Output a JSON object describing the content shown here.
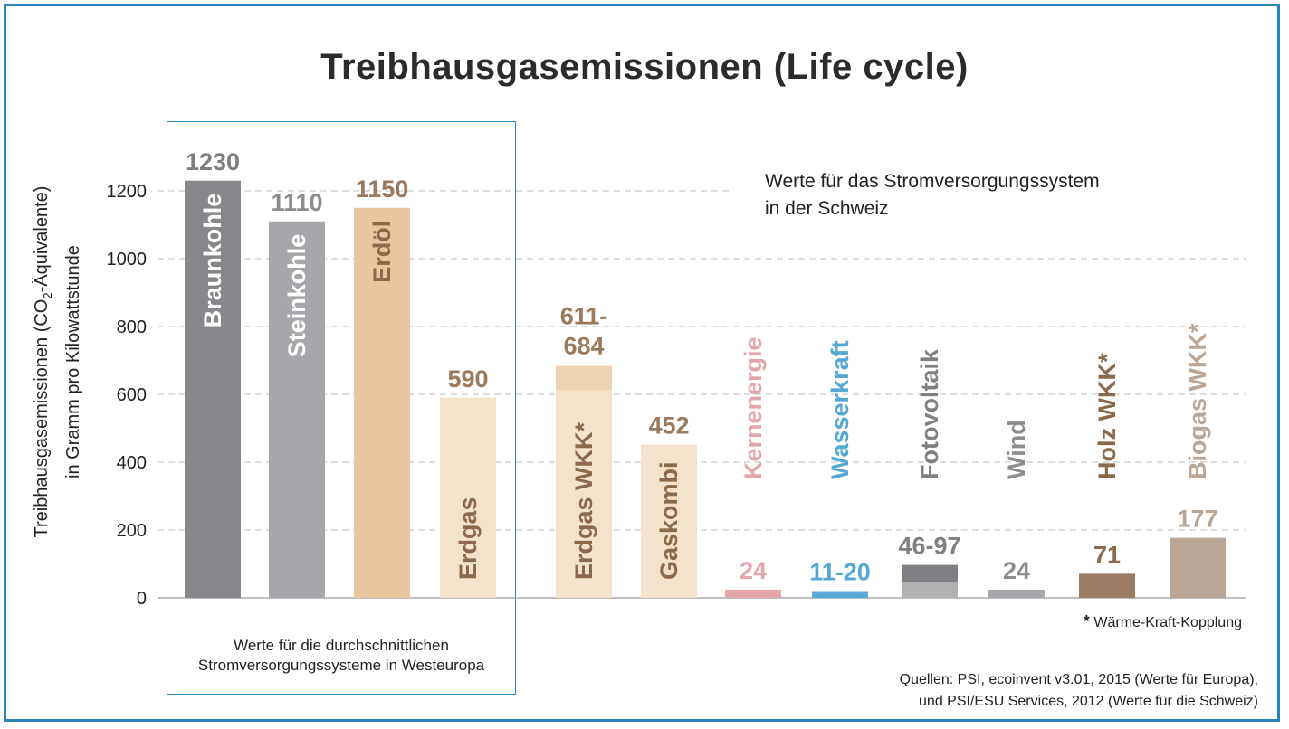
{
  "chart_data": {
    "type": "bar",
    "title": "Treibhausgasemissionen (Life cycle)",
    "ylabel_line1_pre": "Treibhausgasemissionen (CO",
    "ylabel_line1_sub": "2",
    "ylabel_line1_post": "-Äquivalente)",
    "ylabel_line2": "in Gramm pro Kilowattstunde",
    "ylim": [
      0,
      1300
    ],
    "yticks": [
      0,
      200,
      400,
      600,
      800,
      1000,
      1200
    ],
    "grid": true,
    "bars": [
      {
        "category": "Braunkohle",
        "value": 1230,
        "label": "1230",
        "color": "#86878a",
        "name_color": "#ffffff",
        "label_color": "#7d7e81",
        "name_inside": true
      },
      {
        "category": "Steinkohle",
        "value": 1110,
        "label": "1110",
        "color": "#a6a7aa",
        "name_color": "#ffffff",
        "label_color": "#8c8d90",
        "name_inside": true
      },
      {
        "category": "Erdöl",
        "value": 1150,
        "label": "1150",
        "color": "#e6c7a0",
        "name_color": "#8b6a4b",
        "label_color": "#9a7a5c",
        "name_inside": true
      },
      {
        "category": "Erdgas",
        "value": 590,
        "label": "590",
        "color": "#f3e2cc",
        "name_color": "#8b6a4b",
        "label_color": "#9a7a5c",
        "name_inside": true
      },
      {
        "category": "Erdgas WKK*",
        "value": 611,
        "value_max": 684,
        "label_line1": "611-",
        "label_line2": "684",
        "color": "#f3e2cc",
        "color_top": "#ecd3b3",
        "name_color": "#8b6a4b",
        "label_color": "#9a7a5c",
        "name_inside": true
      },
      {
        "category": "Gaskombi",
        "value": 452,
        "label": "452",
        "color": "#f3e2cc",
        "name_color": "#8b6a4b",
        "label_color": "#9a7a5c",
        "name_inside": true
      },
      {
        "category": "Kernenergie",
        "value": 24,
        "label": "24",
        "color": "#e4a6aa",
        "name_color": "#e4a6aa",
        "label_color": "#e4a6aa",
        "name_inside": false
      },
      {
        "category": "Wasserkraft",
        "value": 11,
        "value_max": 20,
        "label": "11-20",
        "color": "#56a8d4",
        "name_color": "#56a8d4",
        "label_color": "#56a8d4",
        "name_inside": false
      },
      {
        "category": "Fotovoltaik",
        "value": 46,
        "value_max": 97,
        "label": "46-97",
        "color": "#b0b1b3",
        "color_top": "#7f8083",
        "name_color": "#7f8083",
        "label_color": "#7f8083",
        "name_inside": false
      },
      {
        "category": "Wind",
        "value": 24,
        "label": "24",
        "color": "#a6a7aa",
        "name_color": "#8c8d90",
        "label_color": "#8c8d90",
        "name_inside": false
      },
      {
        "category": "Holz WKK*",
        "value": 71,
        "label": "71",
        "color": "#9b7b63",
        "name_color": "#8b6a4b",
        "label_color": "#8b6a4b",
        "name_inside": false
      },
      {
        "category": "Biogas WKK*",
        "value": 177,
        "label": "177",
        "color": "#b9a696",
        "name_color": "#b9a696",
        "label_color": "#b9a696",
        "name_inside": false
      }
    ]
  },
  "captions": {
    "switzerland_line1": "Werte für das Stromversorgungssystem",
    "switzerland_line2": "in der Schweiz",
    "europe_line1": "Werte für die durchschnittlichen",
    "europe_line2": "Stromversorgungssysteme in Westeuropa",
    "footnote_star": "*",
    "footnote_text": "Wärme-Kraft-Kopplung",
    "source_line1": "Quellen: PSI, ecoinvent v3.01, 2015 (Werte für Europa),",
    "source_line2": "und PSI/ESU Services, 2012 (Werte für die Schweiz)"
  },
  "colors": {
    "frame": "#2a86b8",
    "grid": "#bdbdbd",
    "axis_text": "#222222"
  }
}
